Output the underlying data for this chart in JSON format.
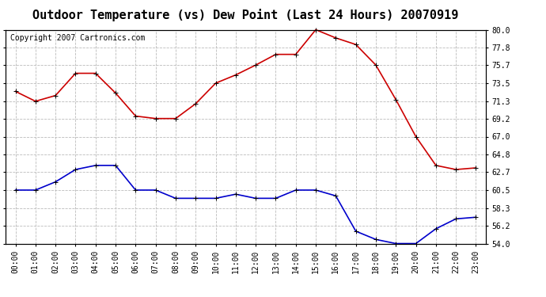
{
  "title": "Outdoor Temperature (vs) Dew Point (Last 24 Hours) 20070919",
  "copyright_text": "Copyright 2007 Cartronics.com",
  "x_labels": [
    "00:00",
    "01:00",
    "02:00",
    "03:00",
    "04:00",
    "05:00",
    "06:00",
    "07:00",
    "08:00",
    "09:00",
    "10:00",
    "11:00",
    "12:00",
    "13:00",
    "14:00",
    "15:00",
    "16:00",
    "17:00",
    "18:00",
    "19:00",
    "20:00",
    "21:00",
    "22:00",
    "23:00"
  ],
  "temp_values": [
    72.5,
    71.3,
    72.0,
    74.7,
    74.7,
    72.3,
    69.5,
    69.2,
    69.2,
    71.0,
    73.5,
    74.5,
    75.7,
    77.0,
    77.0,
    80.0,
    79.0,
    78.2,
    75.7,
    71.5,
    67.0,
    63.5,
    63.0,
    63.2
  ],
  "dew_values": [
    60.5,
    60.5,
    61.5,
    63.0,
    63.5,
    63.5,
    60.5,
    60.5,
    59.5,
    59.5,
    59.5,
    60.0,
    59.5,
    59.5,
    60.5,
    60.5,
    59.8,
    55.5,
    54.5,
    54.0,
    54.0,
    55.8,
    57.0,
    57.2
  ],
  "temp_color": "#cc0000",
  "dew_color": "#0000cc",
  "bg_color": "#ffffff",
  "grid_color": "#bbbbbb",
  "ylim": [
    54.0,
    80.0
  ],
  "yticks": [
    54.0,
    56.2,
    58.3,
    60.5,
    62.7,
    64.8,
    67.0,
    69.2,
    71.3,
    73.5,
    75.7,
    77.8,
    80.0
  ],
  "title_fontsize": 11,
  "copyright_fontsize": 7,
  "axis_fontsize": 7,
  "marker": "+",
  "markersize": 5,
  "linewidth": 1.2
}
